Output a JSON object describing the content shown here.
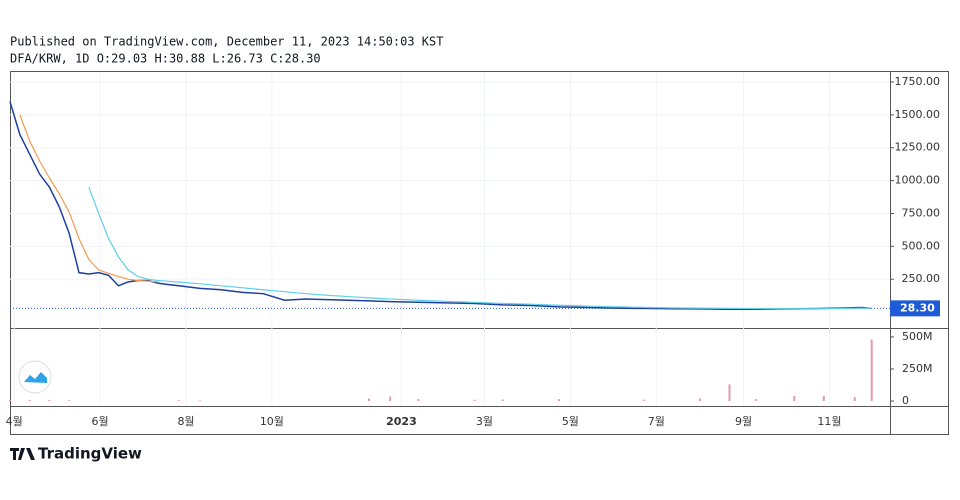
{
  "chart_data": {
    "type": "line",
    "title": "Published on TradingView.com, December 11, 2023 14:50:03 KST",
    "subtitle": "DFA/KRW, 1D O:29.03 H:30.88 L:26.73 C:28.30",
    "brand": "TradingView",
    "x": [
      0,
      7,
      14,
      21,
      28,
      35,
      42,
      49,
      56,
      63,
      70,
      77,
      84,
      91,
      98,
      105,
      112,
      120,
      135,
      150,
      165,
      180,
      195,
      210,
      225,
      240,
      255,
      270,
      290,
      310,
      330,
      350,
      370,
      390,
      410,
      430,
      450,
      470,
      490,
      510,
      530,
      550,
      570,
      590,
      605,
      612
    ],
    "series": [
      {
        "color": "#1e3fa0",
        "values": [
          1600,
          1350,
          1200,
          1050,
          950,
          800,
          600,
          300,
          290,
          300,
          280,
          200,
          230,
          240,
          240,
          220,
          210,
          200,
          180,
          170,
          150,
          140,
          90,
          100,
          95,
          90,
          85,
          80,
          75,
          70,
          65,
          55,
          50,
          40,
          35,
          30,
          28,
          25,
          24,
          22,
          22,
          24,
          26,
          30,
          35,
          28.3
        ]
      },
      {
        "color": "#f59b4c",
        "values": [
          null,
          1500,
          1300,
          1150,
          1020,
          900,
          760,
          560,
          400,
          320,
          295,
          270,
          250,
          240,
          235,
          230,
          null,
          null,
          null,
          null,
          null,
          null,
          null,
          null,
          null,
          null,
          null,
          null,
          null,
          null,
          null,
          null,
          null,
          null,
          null,
          null,
          null,
          null,
          null,
          null,
          null,
          null,
          null,
          null,
          null,
          null
        ]
      },
      {
        "color": "#5fd1e8",
        "values": [
          null,
          null,
          null,
          null,
          null,
          null,
          null,
          null,
          950,
          750,
          560,
          420,
          320,
          270,
          250,
          240,
          235,
          228,
          215,
          200,
          185,
          170,
          155,
          140,
          128,
          118,
          108,
          100,
          90,
          82,
          74,
          66,
          60,
          52,
          46,
          40,
          36,
          32,
          30,
          28,
          27,
          26,
          26,
          27,
          29,
          30
        ]
      }
    ],
    "xlim": [
      0,
      625
    ],
    "xticks": [
      {
        "value": 3,
        "label": "4월"
      },
      {
        "value": 64,
        "label": "6월"
      },
      {
        "value": 125,
        "label": "8월"
      },
      {
        "value": 186,
        "label": "10월"
      },
      {
        "value": 278,
        "label": "2023"
      },
      {
        "value": 337,
        "label": "3월"
      },
      {
        "value": 398,
        "label": "5월"
      },
      {
        "value": 459,
        "label": "7월"
      },
      {
        "value": 521,
        "label": "9월"
      },
      {
        "value": 582,
        "label": "11월"
      }
    ],
    "ylim": [
      -121,
      1826
    ],
    "yticks": [
      {
        "value": 250,
        "label": "250.00"
      },
      {
        "value": 500,
        "label": "500.00"
      },
      {
        "value": 750,
        "label": "750.00"
      },
      {
        "value": 1000,
        "label": "1000.00"
      },
      {
        "value": 1250,
        "label": "1250.00"
      },
      {
        "value": 1500,
        "label": "1500.00"
      },
      {
        "value": 1750,
        "label": "1750.00"
      }
    ],
    "last_price": {
      "value": 28.3,
      "label": "28.30",
      "color": "#1e5bd6"
    },
    "grid": true,
    "volume": {
      "color": "#e79aa6",
      "x": [
        0,
        14,
        28,
        42,
        120,
        135,
        255,
        270,
        290,
        330,
        350,
        390,
        450,
        490,
        511,
        530,
        557,
        578,
        600,
        612
      ],
      "values": [
        10000000,
        8000000,
        9000000,
        6000000,
        6000000,
        5000000,
        20000000,
        35000000,
        15000000,
        10000000,
        12000000,
        15000000,
        10000000,
        20000000,
        130000000,
        15000000,
        40000000,
        40000000,
        30000000,
        480000000
      ],
      "ylim": [
        -39000000,
        562000000
      ],
      "yticks": [
        0,
        {
          "value": 250000000,
          "label": "250M"
        },
        {
          "value": 500000000,
          "label": "500M"
        }
      ]
    }
  }
}
